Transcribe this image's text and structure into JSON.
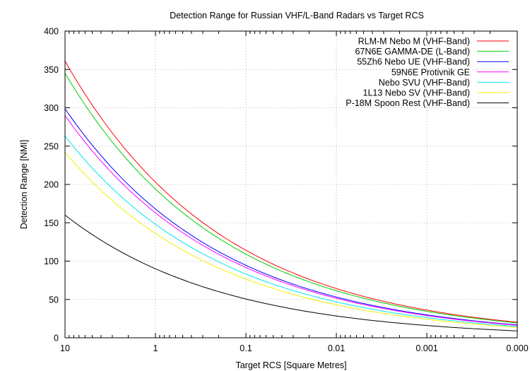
{
  "chart_data": {
    "type": "line",
    "title": "Detection Range for Russian VHF/L-Band Radars vs Target RCS",
    "xlabel": "Target RCS [Square Metres]",
    "ylabel": "Detection Range [NMI]",
    "x_scale": "log",
    "x_reversed": true,
    "xlim": [
      10,
      0.0001
    ],
    "ylim": [
      0,
      400
    ],
    "grid": true,
    "legend_position": "top-right",
    "x_ticks": [
      {
        "value": 10,
        "label": "10"
      },
      {
        "value": 1,
        "label": "1"
      },
      {
        "value": 0.1,
        "label": "0.1"
      },
      {
        "value": 0.01,
        "label": "0.01"
      },
      {
        "value": 0.001,
        "label": "0.001"
      },
      {
        "value": 0.0001,
        "label": "0.000"
      }
    ],
    "y_ticks": [
      0,
      50,
      100,
      150,
      200,
      250,
      300,
      350,
      400
    ],
    "model": "range = R1 * RCS^(1/4)",
    "series": [
      {
        "name": "RLM-M Nebo M (VHF-Band)",
        "color": "#ff0000",
        "range_at_1m2": 203
      },
      {
        "name": "67N6E GAMMA-DE (L-Band)",
        "color": "#00cc00",
        "range_at_1m2": 194
      },
      {
        "name": "55Zh6 Nebo UE (VHF-Band)",
        "color": "#0000ff",
        "range_at_1m2": 168
      },
      {
        "name": "59N6E Protivnik GE",
        "color": "#ff00ff",
        "range_at_1m2": 163
      },
      {
        "name": "Nebo SVU (VHF-Band)",
        "color": "#00e5ee",
        "range_at_1m2": 148
      },
      {
        "name": "1L13 Nebo SV (VHF-Band)",
        "color": "#f0f000",
        "range_at_1m2": 136
      },
      {
        "name": "P-18M Spoon Rest (VHF-Band)",
        "color": "#000000",
        "range_at_1m2": 90
      }
    ]
  }
}
